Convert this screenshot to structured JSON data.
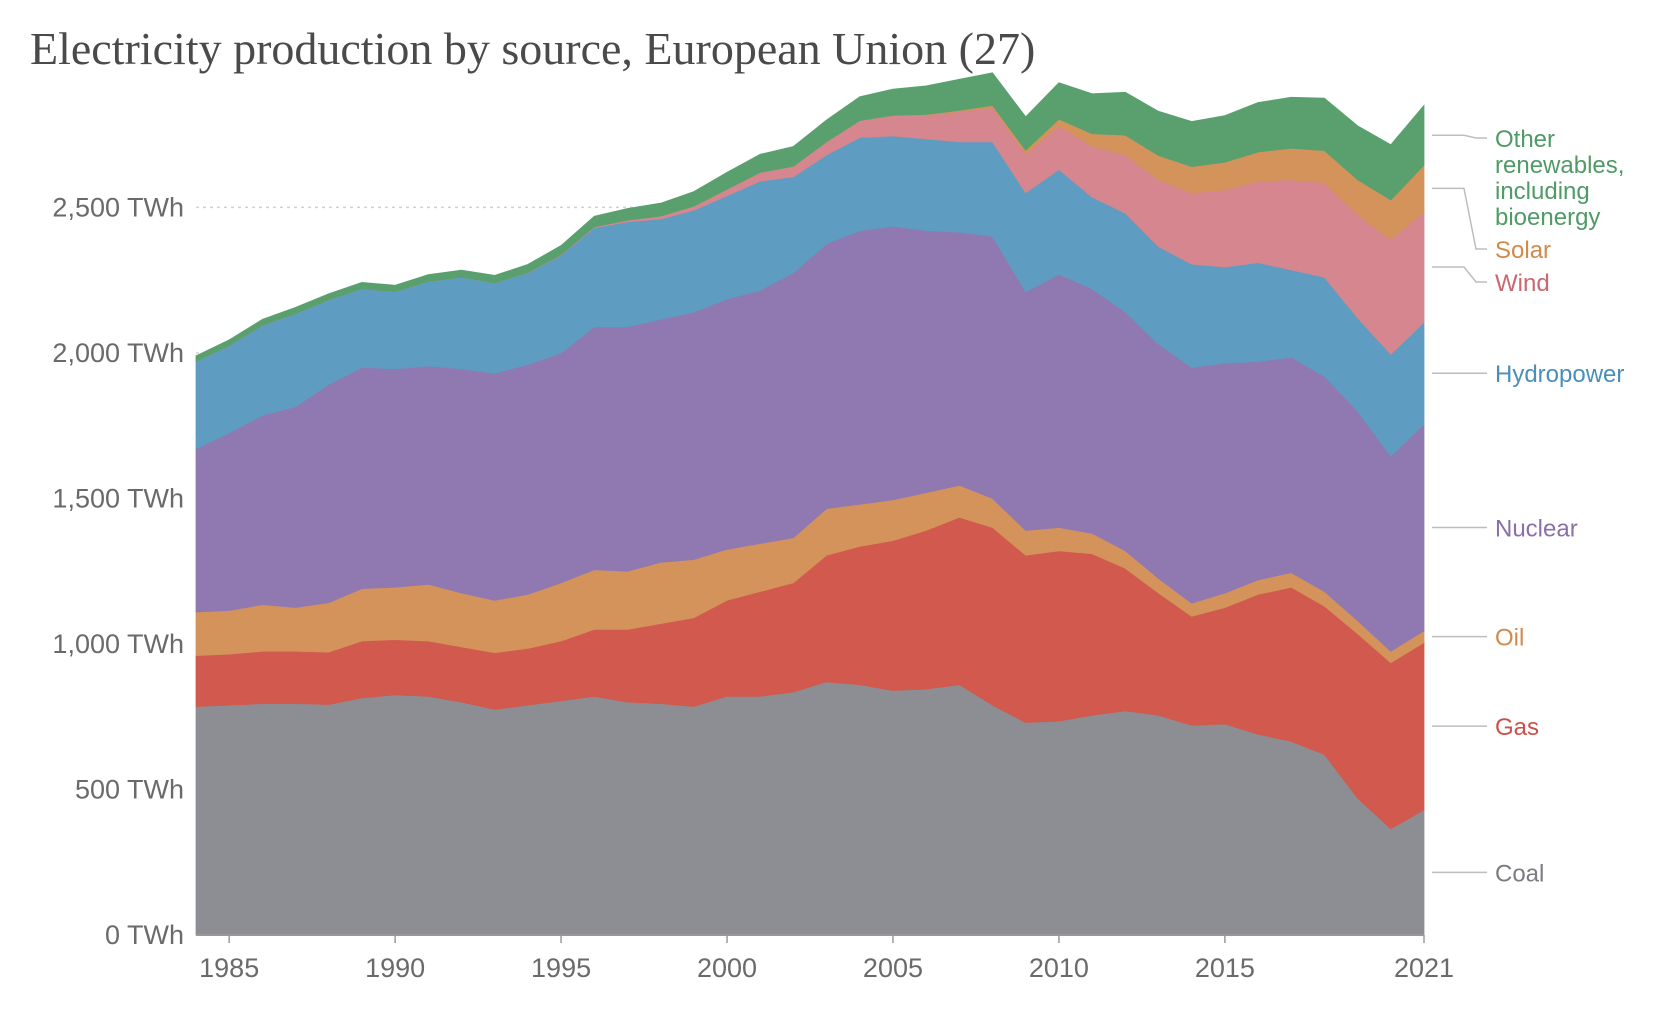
{
  "chart_data": {
    "type": "area",
    "stacked": true,
    "title": "Electricity production by source, European Union (27)",
    "xlabel": "",
    "ylabel": "",
    "xlim": [
      1984,
      2021
    ],
    "ylim": [
      0,
      2800
    ],
    "yticks": [
      {
        "value": 0,
        "label": "0 TWh"
      },
      {
        "value": 500,
        "label": "500 TWh"
      },
      {
        "value": 1000,
        "label": "1,000 TWh"
      },
      {
        "value": 1500,
        "label": "1,500 TWh"
      },
      {
        "value": 2000,
        "label": "2,000 TWh"
      },
      {
        "value": 2500,
        "label": "2,500 TWh"
      }
    ],
    "xticks": [
      {
        "value": 1985,
        "label": "1985"
      },
      {
        "value": 1990,
        "label": "1990"
      },
      {
        "value": 1995,
        "label": "1995"
      },
      {
        "value": 2000,
        "label": "2000"
      },
      {
        "value": 2005,
        "label": "2005"
      },
      {
        "value": 2010,
        "label": "2010"
      },
      {
        "value": 2015,
        "label": "2015"
      },
      {
        "value": 2021,
        "label": "2021"
      }
    ],
    "grid": "horizontal-dotted",
    "legend_placement": "right",
    "x": [
      1984,
      1985,
      1986,
      1987,
      1988,
      1989,
      1990,
      1991,
      1992,
      1993,
      1994,
      1995,
      1996,
      1997,
      1998,
      1999,
      2000,
      2001,
      2002,
      2003,
      2004,
      2005,
      2006,
      2007,
      2008,
      2009,
      2010,
      2011,
      2012,
      2013,
      2014,
      2015,
      2016,
      2017,
      2018,
      2019,
      2020,
      2021
    ],
    "series": [
      {
        "name": "Coal",
        "color": "#8c8e94",
        "values": [
          785,
          790,
          795,
          795,
          792,
          815,
          825,
          820,
          800,
          775,
          790,
          805,
          820,
          800,
          795,
          785,
          820,
          820,
          835,
          870,
          860,
          840,
          845,
          860,
          790,
          730,
          735,
          755,
          770,
          755,
          720,
          725,
          690,
          665,
          620,
          470,
          365,
          430
        ]
      },
      {
        "name": "Gas",
        "color": "#d1594d",
        "values": [
          175,
          175,
          180,
          180,
          180,
          195,
          190,
          190,
          190,
          195,
          195,
          205,
          230,
          250,
          275,
          305,
          330,
          360,
          375,
          435,
          475,
          515,
          545,
          575,
          610,
          575,
          585,
          555,
          490,
          420,
          375,
          400,
          480,
          530,
          510,
          565,
          570,
          575
        ]
      },
      {
        "name": "Oil",
        "color": "#d4935a",
        "values": [
          150,
          150,
          160,
          150,
          170,
          180,
          180,
          195,
          185,
          180,
          185,
          200,
          205,
          200,
          210,
          200,
          175,
          165,
          155,
          160,
          145,
          140,
          130,
          110,
          100,
          85,
          80,
          70,
          60,
          50,
          45,
          50,
          50,
          50,
          50,
          45,
          40,
          40
        ]
      },
      {
        "name": "Nuclear",
        "color": "#8f79b0",
        "values": [
          560,
          610,
          650,
          690,
          750,
          760,
          750,
          750,
          770,
          780,
          790,
          790,
          835,
          840,
          835,
          850,
          860,
          870,
          910,
          910,
          940,
          940,
          900,
          870,
          900,
          820,
          870,
          840,
          820,
          805,
          810,
          790,
          750,
          740,
          740,
          720,
          670,
          710
        ]
      },
      {
        "name": "Hydropower",
        "color": "#5f9cc1",
        "values": [
          300,
          300,
          310,
          320,
          290,
          270,
          265,
          290,
          315,
          310,
          315,
          335,
          340,
          360,
          345,
          350,
          355,
          375,
          330,
          305,
          320,
          310,
          315,
          310,
          325,
          340,
          360,
          315,
          340,
          335,
          355,
          330,
          340,
          300,
          340,
          320,
          350,
          350
        ]
      },
      {
        "name": "Wind",
        "color": "#d5868f",
        "values": [
          0,
          0,
          0,
          0,
          0,
          0,
          0,
          0,
          0,
          0,
          1,
          2,
          3,
          6,
          10,
          14,
          22,
          30,
          36,
          45,
          58,
          70,
          82,
          104,
          118,
          132,
          150,
          175,
          200,
          230,
          245,
          265,
          280,
          310,
          325,
          355,
          395,
          380
        ]
      },
      {
        "name": "Solar",
        "color": "#d4935a",
        "values": [
          0,
          0,
          0,
          0,
          0,
          0,
          0,
          0,
          0,
          0,
          0,
          0,
          0,
          0,
          0,
          0,
          0,
          0,
          0,
          0,
          0,
          1,
          2,
          4,
          7,
          14,
          23,
          43,
          68,
          83,
          90,
          95,
          100,
          108,
          110,
          120,
          135,
          160
        ]
      },
      {
        "name": "Other renewables, including bioenergy",
        "color": "#5aa06f",
        "values": [
          20,
          20,
          20,
          21,
          21,
          22,
          22,
          24,
          24,
          26,
          28,
          32,
          36,
          40,
          44,
          50,
          58,
          62,
          68,
          75,
          82,
          90,
          98,
          107,
          112,
          115,
          125,
          137,
          147,
          152,
          155,
          160,
          170,
          175,
          180,
          185,
          190,
          205
        ]
      }
    ],
    "legend": [
      {
        "label": "Other\nrenewables,\nincluding\nbioenergy",
        "color": "#4f9a67"
      },
      {
        "label": "Solar",
        "color": "#d28a4a"
      },
      {
        "label": "Wind",
        "color": "#c9686f"
      },
      {
        "label": "Hydropower",
        "color": "#4a8fb8"
      },
      {
        "label": "Nuclear",
        "color": "#8a6fab"
      },
      {
        "label": "Oil",
        "color": "#d28a4a"
      },
      {
        "label": "Gas",
        "color": "#c9514a"
      },
      {
        "label": "Coal",
        "color": "#7a7c82"
      }
    ]
  }
}
